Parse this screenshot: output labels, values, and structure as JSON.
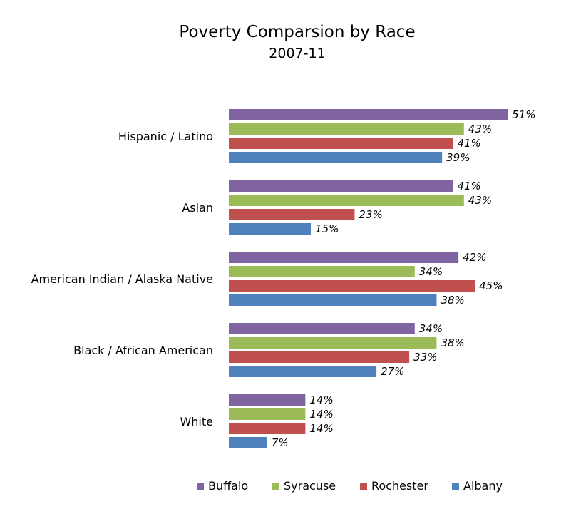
{
  "chart_data": {
    "type": "bar",
    "orientation": "horizontal",
    "title": "Poverty Comparsion by Race",
    "subtitle": "2007-11",
    "categories": [
      "Hispanic / Latino",
      "Asian",
      "American Indian / Alaska Native",
      "Black / African American",
      "White"
    ],
    "series": [
      {
        "name": "Buffalo",
        "color": "#8064A2",
        "values": [
          51,
          41,
          42,
          34,
          14
        ]
      },
      {
        "name": "Syracuse",
        "color": "#9BBB59",
        "values": [
          43,
          43,
          34,
          38,
          14
        ]
      },
      {
        "name": "Rochester",
        "color": "#C0504D",
        "values": [
          41,
          23,
          45,
          33,
          14
        ]
      },
      {
        "name": "Albany",
        "color": "#4F81BD",
        "values": [
          39,
          15,
          38,
          27,
          7
        ]
      }
    ],
    "value_suffix": "%",
    "xlim": [
      0,
      60
    ],
    "grid": false,
    "axis_visible": false,
    "legend": "bottom"
  }
}
